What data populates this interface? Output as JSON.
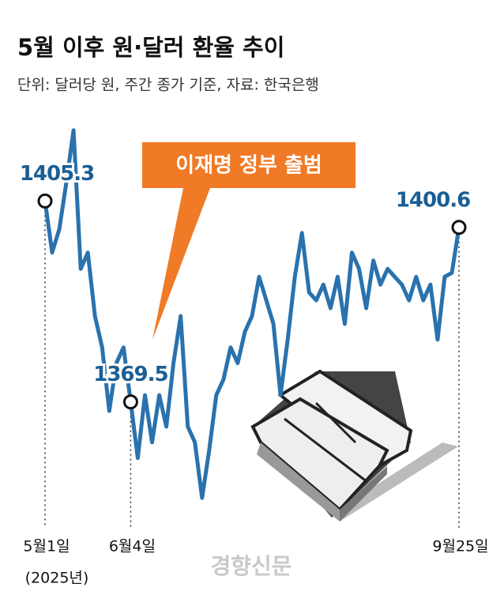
{
  "chart_data": {
    "type": "line",
    "title": "5월 이후 원·달러 환율 추이",
    "subtitle": "단위: 달러당 원, 주간 종가 기준, 자료: 한국은행",
    "annotation": "이재명 정부 출범",
    "x_note": "(2025년)",
    "source": "경향신문",
    "color": "#2a72ad",
    "ylim": [
      1351,
      1420
    ],
    "categories": [
      "5월1일",
      null,
      null,
      null,
      null,
      null,
      null,
      null,
      null,
      null,
      null,
      null,
      "6월4일",
      null,
      null,
      null,
      null,
      null,
      null,
      null,
      null,
      null,
      null,
      null,
      null,
      null,
      null,
      null,
      null,
      null,
      null,
      null,
      null,
      null,
      null,
      null,
      null,
      null,
      null,
      null,
      null,
      null,
      null,
      null,
      null,
      null,
      null,
      null,
      null,
      null,
      null,
      null,
      null,
      null,
      null,
      null,
      null,
      null,
      "9월25일"
    ],
    "values": [
      1405.3,
      1396.1,
      1400.3,
      1408.7,
      1417.9,
      1393.2,
      1396.1,
      1384.8,
      1379.2,
      1367.9,
      1376.4,
      1379.2,
      1369.5,
      1359.5,
      1370.7,
      1362.3,
      1370.7,
      1365.1,
      1376.4,
      1384.8,
      1365.1,
      1362.3,
      1352.4,
      1360.9,
      1370.7,
      1373.5,
      1379.2,
      1376.4,
      1382.0,
      1384.8,
      1391.8,
      1387.6,
      1383.4,
      1370.7,
      1380.6,
      1391.8,
      1399.6,
      1389.0,
      1387.6,
      1390.4,
      1386.2,
      1391.8,
      1383.4,
      1396.1,
      1393.2,
      1386.2,
      1394.7,
      1390.4,
      1393.2,
      1391.8,
      1390.4,
      1387.6,
      1391.8,
      1387.6,
      1390.4,
      1380.6,
      1391.8,
      1392.5,
      1400.6
    ]
  }
}
